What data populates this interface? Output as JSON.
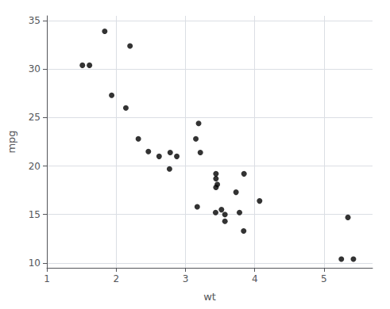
{
  "chart_data": {
    "type": "scatter",
    "xlabel": "wt",
    "ylabel": "mpg",
    "x": [
      2.62,
      2.875,
      2.32,
      3.215,
      3.44,
      3.46,
      3.57,
      3.19,
      3.15,
      3.44,
      3.44,
      4.07,
      3.73,
      3.78,
      5.25,
      5.424,
      5.345,
      2.2,
      1.615,
      1.835,
      2.465,
      3.52,
      3.435,
      3.84,
      3.845,
      1.935,
      2.14,
      1.513,
      3.17,
      2.77,
      3.57,
      2.78
    ],
    "values": [
      21.0,
      21.0,
      22.8,
      21.4,
      18.7,
      18.1,
      14.3,
      24.4,
      22.8,
      19.2,
      17.8,
      16.4,
      17.3,
      15.2,
      10.4,
      10.4,
      14.7,
      32.4,
      30.4,
      33.9,
      21.5,
      15.5,
      15.2,
      13.3,
      19.2,
      27.3,
      26.0,
      30.4,
      15.8,
      19.7,
      15.0,
      21.4
    ],
    "color": "#000000",
    "xlim": [
      1.0,
      5.7
    ],
    "xticks": [
      1,
      2,
      3,
      4,
      5
    ],
    "ylim": [
      9.5,
      35.5
    ],
    "yticks": [
      10,
      15,
      20,
      25,
      30,
      35
    ],
    "grid": true
  }
}
